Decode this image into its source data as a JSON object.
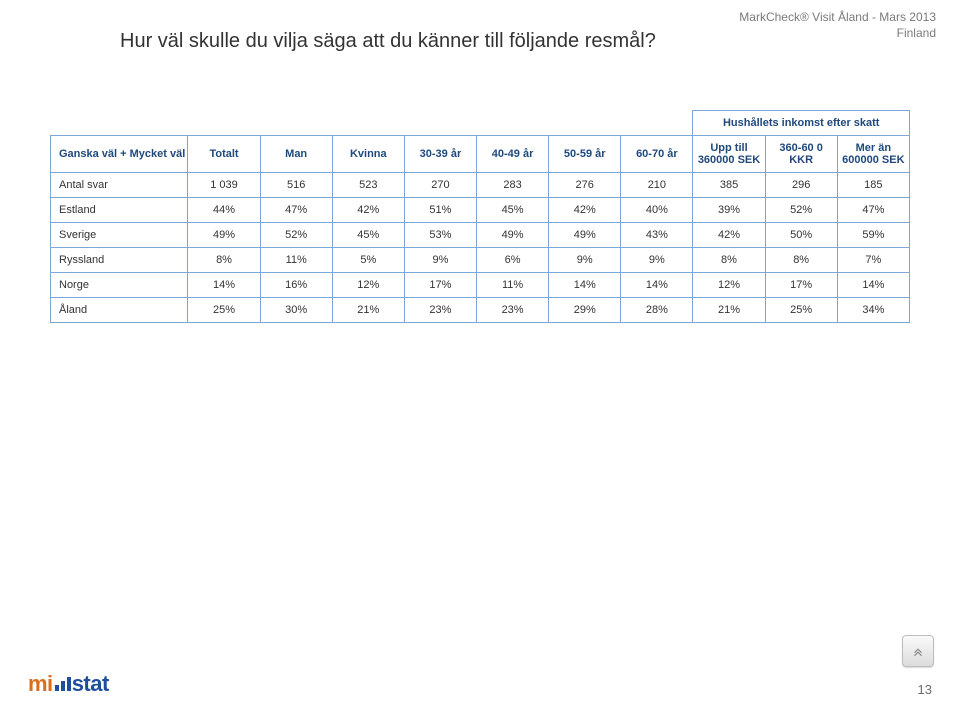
{
  "meta": {
    "brand_line": "MarkCheck® Visit Åland - Mars 2013",
    "country_line": "Finland",
    "page_number": "13"
  },
  "title": "Hur väl skulle du vilja säga att du känner till följande resmål?",
  "logo": {
    "part1": "mi",
    "part2": "stat",
    "bar_color": "#1f4e9c",
    "part1_color": "#d96f1e",
    "part2_color": "#1f4e9c"
  },
  "table": {
    "border_color": "#7da7d9",
    "header_text_color": "#1f497d",
    "super_header": "Hushållets inkomst efter skatt",
    "row_header": "Ganska väl + Mycket väl",
    "columns": [
      "Totalt",
      "Man",
      "Kvinna",
      "30-39 år",
      "40-49 år",
      "50-59 år",
      "60-70 år",
      "Upp till 360000 SEK",
      "360-60 0 KKR",
      "Mer än 600000 SEK"
    ],
    "rows": [
      {
        "label": "Antal svar",
        "cells": [
          "1 039",
          "516",
          "523",
          "270",
          "283",
          "276",
          "210",
          "385",
          "296",
          "185"
        ]
      },
      {
        "label": "Estland",
        "cells": [
          "44%",
          "47%",
          "42%",
          "51%",
          "45%",
          "42%",
          "40%",
          "39%",
          "52%",
          "47%"
        ]
      },
      {
        "label": "Sverige",
        "cells": [
          "49%",
          "52%",
          "45%",
          "53%",
          "49%",
          "49%",
          "43%",
          "42%",
          "50%",
          "59%"
        ]
      },
      {
        "label": "Ryssland",
        "cells": [
          "8%",
          "11%",
          "5%",
          "9%",
          "6%",
          "9%",
          "9%",
          "8%",
          "8%",
          "7%"
        ]
      },
      {
        "label": "Norge",
        "cells": [
          "14%",
          "16%",
          "12%",
          "17%",
          "11%",
          "14%",
          "14%",
          "12%",
          "17%",
          "14%"
        ]
      },
      {
        "label": "Åland",
        "cells": [
          "25%",
          "30%",
          "21%",
          "23%",
          "23%",
          "29%",
          "28%",
          "21%",
          "25%",
          "34%"
        ]
      }
    ]
  },
  "nav": {
    "icon": "chevron-up-double",
    "icon_color": "#8a8a8a"
  }
}
